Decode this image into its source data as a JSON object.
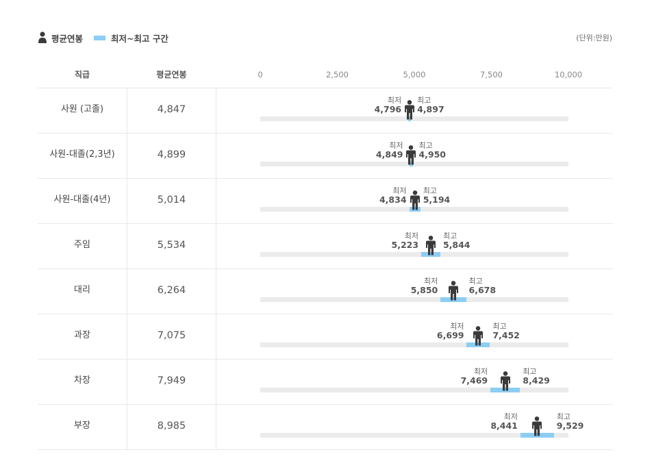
{
  "legend": {
    "avg_label": "평균연봉",
    "range_label": "최저~최고 구간",
    "unit": "(단위:만원)"
  },
  "header": {
    "col_title": "직급",
    "col_avg": "평균연봉"
  },
  "labels": {
    "min": "최저",
    "max": "최고"
  },
  "colors": {
    "range": "#8ccdf4",
    "track": "#ebebeb",
    "person": "#3a3a3a"
  },
  "chart_data": {
    "type": "bar",
    "x_range": [
      0,
      10000
    ],
    "x_ticks": [
      "0",
      "2,500",
      "5,000",
      "7,500",
      "10,000"
    ],
    "tick_values": [
      0,
      2500,
      5000,
      7500,
      10000
    ],
    "rows": [
      {
        "title": "사원 (고졸)",
        "avg": 4847,
        "avg_label": "4,847",
        "min": 4796,
        "min_label": "4,796",
        "max": 4897,
        "max_label": "4,897"
      },
      {
        "title": "사원-대졸(2,3년)",
        "avg": 4899,
        "avg_label": "4,899",
        "min": 4849,
        "min_label": "4,849",
        "max": 4950,
        "max_label": "4,950"
      },
      {
        "title": "사원-대졸(4년)",
        "avg": 5014,
        "avg_label": "5,014",
        "min": 4834,
        "min_label": "4,834",
        "max": 5194,
        "max_label": "5,194"
      },
      {
        "title": "주임",
        "avg": 5534,
        "avg_label": "5,534",
        "min": 5223,
        "min_label": "5,223",
        "max": 5844,
        "max_label": "5,844"
      },
      {
        "title": "대리",
        "avg": 6264,
        "avg_label": "6,264",
        "min": 5850,
        "min_label": "5,850",
        "max": 6678,
        "max_label": "6,678"
      },
      {
        "title": "과장",
        "avg": 7075,
        "avg_label": "7,075",
        "min": 6699,
        "min_label": "6,699",
        "max": 7452,
        "max_label": "7,452"
      },
      {
        "title": "차장",
        "avg": 7949,
        "avg_label": "7,949",
        "min": 7469,
        "min_label": "7,469",
        "max": 8429,
        "max_label": "8,429"
      },
      {
        "title": "부장",
        "avg": 8985,
        "avg_label": "8,985",
        "min": 8441,
        "min_label": "8,441",
        "max": 9529,
        "max_label": "9,529"
      }
    ]
  }
}
